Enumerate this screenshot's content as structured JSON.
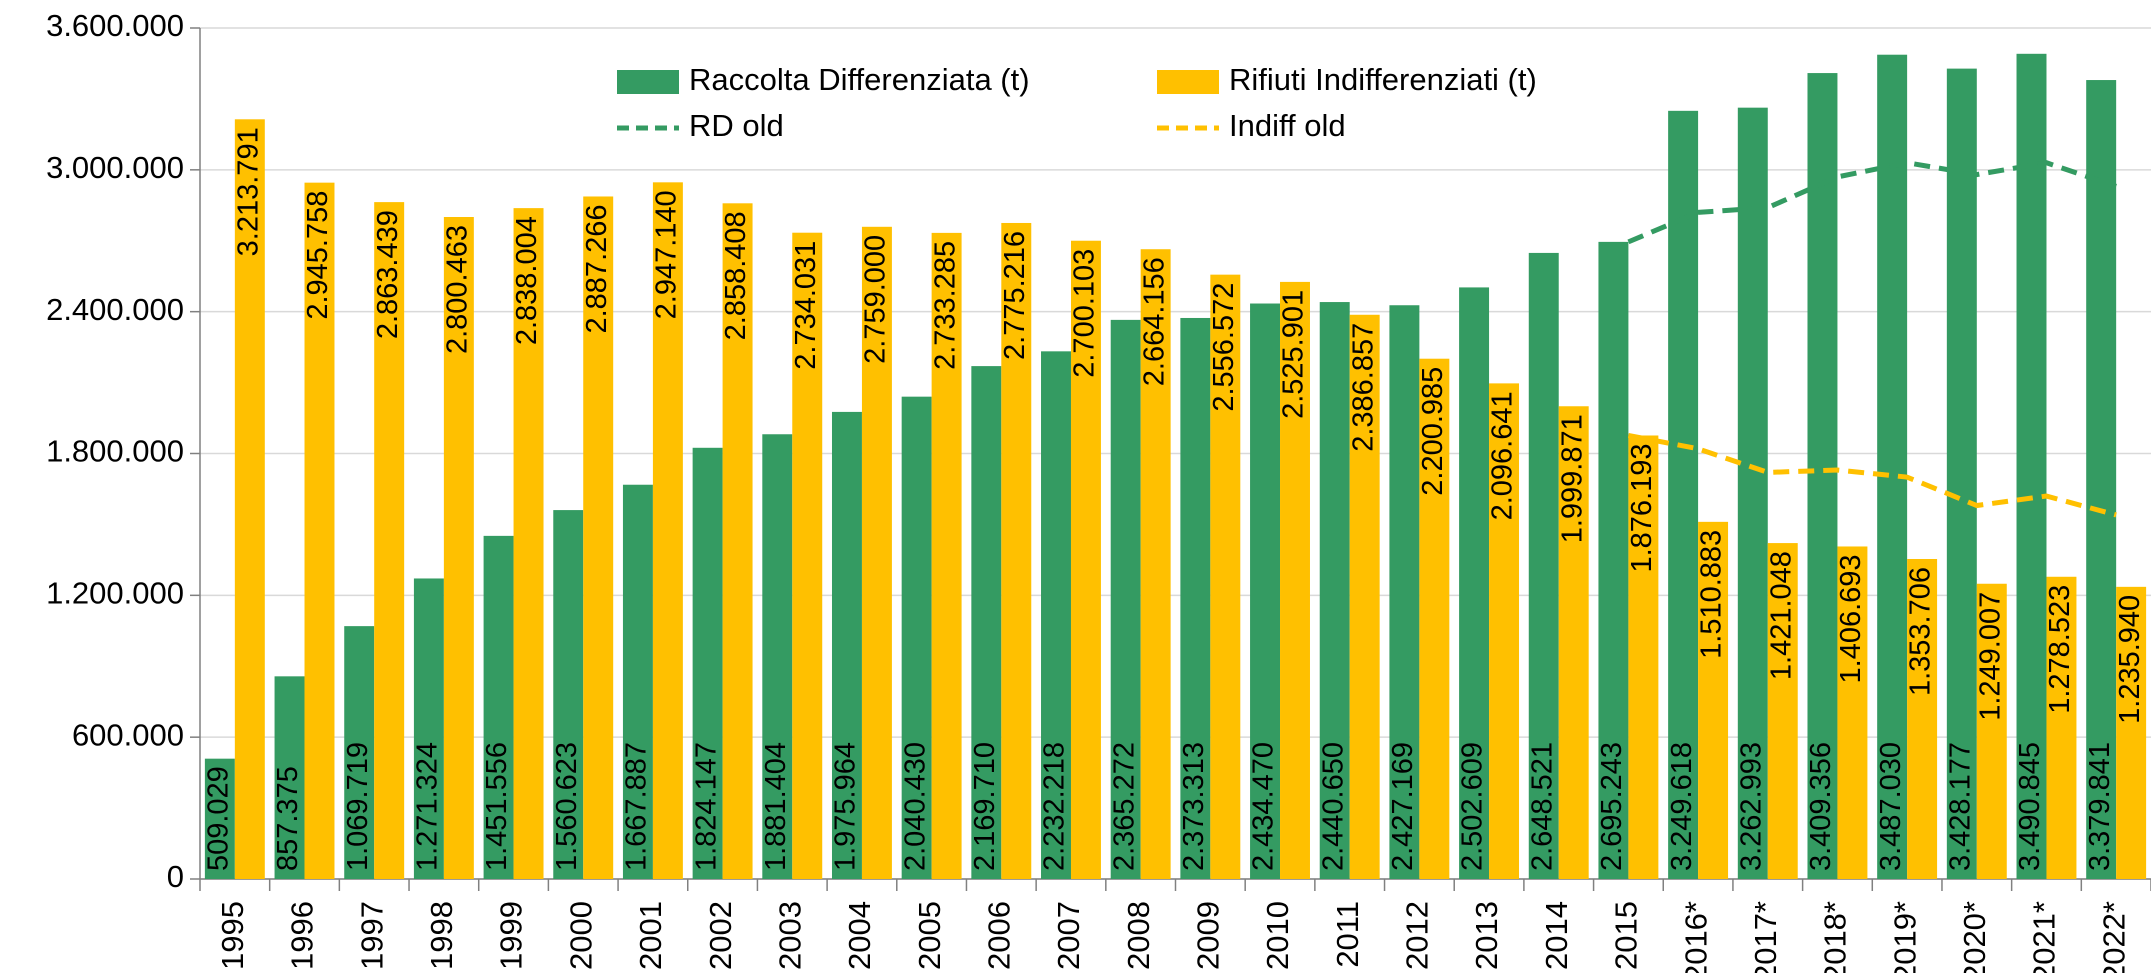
{
  "chart_data": {
    "type": "bar",
    "categories": [
      "1995",
      "1996",
      "1997",
      "1998",
      "1999",
      "2000",
      "2001",
      "2002",
      "2003",
      "2004",
      "2005",
      "2006",
      "2007",
      "2008",
      "2009",
      "2010",
      "2011",
      "2012",
      "2013",
      "2014",
      "2015",
      "2016*",
      "2017*",
      "2018*",
      "2019*",
      "2020*",
      "2021*",
      "2022*"
    ],
    "series": [
      {
        "name": "Raccolta Differenziata (t)",
        "color": "#349b62",
        "values": [
          509029,
          857375,
          1069719,
          1271324,
          1451556,
          1560623,
          1667887,
          1824147,
          1881404,
          1975964,
          2040430,
          2169710,
          2232218,
          2365272,
          2373313,
          2434470,
          2440650,
          2427169,
          2502609,
          2648521,
          2695243,
          3249618,
          3262993,
          3409356,
          3487030,
          3428177,
          3490845,
          3379841
        ],
        "value_labels": [
          "509.029",
          "857.375",
          "1.069.719",
          "1.271.324",
          "1.451.556",
          "1.560.623",
          "1.667.887",
          "1.824.147",
          "1.881.404",
          "1.975.964",
          "2.040.430",
          "2.169.710",
          "2.232.218",
          "2.365.272",
          "2.373.313",
          "2.434.470",
          "2.440.650",
          "2.427.169",
          "2.502.609",
          "2.648.521",
          "2.695.243",
          "3.249.618",
          "3.262.993",
          "3.409.356",
          "3.487.030",
          "3.428.177",
          "3.490.845",
          "3.379.841"
        ]
      },
      {
        "name": "Rifiuti Indifferenziati (t)",
        "color": "#ffc000",
        "values": [
          3213791,
          2945758,
          2863439,
          2800463,
          2838004,
          2887266,
          2947140,
          2858408,
          2734031,
          2759000,
          2733285,
          2775216,
          2700103,
          2664156,
          2556572,
          2525901,
          2386857,
          2200985,
          2096641,
          1999871,
          1876193,
          1510883,
          1421048,
          1406693,
          1353706,
          1249007,
          1278523,
          1235940
        ],
        "value_labels": [
          "3.213.791",
          "2.945.758",
          "2.863.439",
          "2.800.463",
          "2.838.004",
          "2.887.266",
          "2.947.140",
          "2.858.408",
          "2.734.031",
          "2.759.000",
          "2.733.285",
          "2.775.216",
          "2.700.103",
          "2.664.156",
          "2.556.572",
          "2.525.901",
          "2.386.857",
          "2.200.985",
          "2.096.641",
          "1.999.871",
          "1.876.193",
          "1.510.883",
          "1.421.048",
          "1.406.693",
          "1.353.706",
          "1.249.007",
          "1.278.523",
          "1.235.940"
        ]
      },
      {
        "name": "RD old",
        "type": "line",
        "color": "#349b62",
        "values": [
          null,
          null,
          null,
          null,
          null,
          null,
          null,
          null,
          null,
          null,
          null,
          null,
          null,
          null,
          null,
          null,
          null,
          null,
          null,
          null,
          2695243,
          2820000,
          2840000,
          2970000,
          3030000,
          2980000,
          3030000,
          2930000
        ]
      },
      {
        "name": "Indiff old",
        "type": "line",
        "color": "#ffc000",
        "values": [
          null,
          null,
          null,
          null,
          null,
          null,
          null,
          null,
          null,
          null,
          null,
          null,
          null,
          null,
          null,
          null,
          null,
          null,
          null,
          null,
          1876193,
          1820000,
          1720000,
          1730000,
          1700000,
          1580000,
          1620000,
          1540000
        ]
      }
    ],
    "ylim": [
      0,
      3600000
    ],
    "yticks": [
      0,
      {
        "value": 600000,
        "label": "600.000"
      },
      {
        "value": 1200000,
        "label": "1.200.000"
      },
      {
        "value": 1800000,
        "label": "1.800.000"
      },
      {
        "value": 2400000,
        "label": "2.400.000"
      },
      {
        "value": 3000000,
        "label": "3.000.000"
      },
      {
        "value": 3600000,
        "label": "3.600.000"
      }
    ],
    "grid": true,
    "legend": "top"
  }
}
